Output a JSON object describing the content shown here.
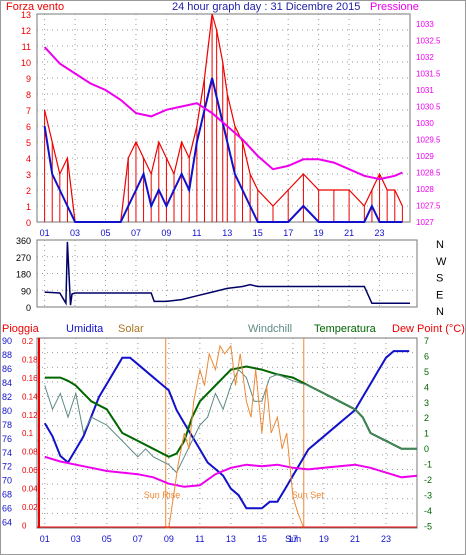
{
  "header": {
    "left_label": "Forza vento",
    "title": "24 hour graph day : 31 Dicembre 2015",
    "right_label": "Pressione"
  },
  "colors": {
    "red": "#ee0000",
    "blue": "#1111cc",
    "magenta": "#ee00ee",
    "navy": "#000066",
    "dark_green": "#006600",
    "orange": "#ee8833",
    "teal_gray": "#5d8a84",
    "gray_dots": "#888888"
  },
  "chart_data": [
    {
      "type": "line",
      "name": "wind-pressure",
      "x_ticks": [
        "01",
        "03",
        "05",
        "07",
        "09",
        "11",
        "13",
        "15",
        "17",
        "19",
        "21",
        "23"
      ],
      "ylim_left": [
        0,
        13
      ],
      "y_left_ticks": [
        "13",
        "12",
        "11",
        "10",
        "9",
        "8",
        "7",
        "6",
        "5",
        "4",
        "3",
        "2",
        "1",
        "0"
      ],
      "ylim_right": [
        1027,
        1033
      ],
      "y_right_ticks": [
        "1033",
        "1032.5",
        "1032",
        "1031.5",
        "1031",
        "1030.5",
        "1030",
        "1029.5",
        "1029",
        "1028.5",
        "1028",
        "1027.5",
        "1027"
      ],
      "series": [
        {
          "name": "Forza vento",
          "axis": "left",
          "color": "#ee0000",
          "x": [
            0,
            0.5,
            1,
            1.5,
            2,
            3,
            4,
            5,
            5.5,
            6,
            6.5,
            7,
            7.5,
            8,
            8.5,
            9,
            9.5,
            10,
            10.5,
            11,
            11.3,
            11.7,
            12,
            12.5,
            13,
            13.5,
            14,
            15,
            16,
            17,
            18,
            19,
            20,
            21,
            21.5,
            22,
            22.5,
            23,
            23.5
          ],
          "y": [
            7,
            5,
            3,
            4,
            0,
            0,
            0,
            0,
            4,
            5,
            4,
            3,
            5,
            4,
            3,
            5,
            4,
            6,
            9,
            13,
            12,
            10,
            8,
            6,
            5,
            3,
            2,
            1,
            2,
            3,
            2,
            2,
            2,
            1,
            2,
            3,
            2,
            2,
            1
          ]
        },
        {
          "name": "gust",
          "axis": "left",
          "color": "#1111cc",
          "x": [
            0,
            0.5,
            1,
            1.5,
            2,
            3,
            4,
            5,
            5.5,
            6,
            6.5,
            7,
            7.5,
            8,
            8.5,
            9,
            9.5,
            10,
            10.5,
            11,
            11.5,
            12,
            12.5,
            13,
            13.5,
            14,
            15,
            16,
            17,
            18,
            19,
            20,
            21,
            21.5,
            22,
            23,
            23.5
          ],
          "y": [
            6,
            3,
            2,
            1,
            0,
            0,
            0,
            0,
            1,
            2,
            3,
            1,
            2,
            1,
            2,
            3,
            2,
            5,
            7,
            9,
            7,
            5,
            3,
            2,
            1,
            0,
            0,
            0,
            1,
            0,
            0,
            0,
            0,
            1,
            0,
            0,
            0
          ]
        },
        {
          "name": "Pressione",
          "axis": "right",
          "color": "#ee00ee",
          "x": [
            0,
            1,
            2,
            3,
            4,
            5,
            6,
            7,
            8,
            9,
            10,
            11,
            12,
            13,
            14,
            15,
            16,
            17,
            18,
            19,
            20,
            21,
            22,
            23,
            23.5
          ],
          "y": [
            1032.3,
            1031.8,
            1031.5,
            1031.2,
            1031,
            1030.7,
            1030.3,
            1030.2,
            1030.4,
            1030.5,
            1030.6,
            1030.3,
            1029.9,
            1029.5,
            1029,
            1028.6,
            1028.7,
            1028.9,
            1028.9,
            1028.8,
            1028.6,
            1028.4,
            1028.3,
            1028.4,
            1028.5
          ]
        }
      ]
    },
    {
      "type": "line",
      "name": "wind-direction",
      "ylim": [
        0,
        360
      ],
      "y_left_ticks": [
        "360",
        "270",
        "180",
        "90",
        "0"
      ],
      "direction_labels": [
        "N",
        "W",
        "S",
        "E",
        "N"
      ],
      "series": [
        {
          "name": "direction",
          "color": "#000066",
          "x": [
            0,
            1,
            1.4,
            1.5,
            1.7,
            1.8,
            2,
            3,
            4,
            5,
            6,
            7,
            7.2,
            8,
            9,
            10,
            11,
            12,
            13,
            13.5,
            14,
            15,
            16,
            17,
            18,
            19,
            20,
            21,
            21.5,
            22,
            23,
            24
          ],
          "y": [
            80,
            75,
            20,
            350,
            10,
            70,
            75,
            75,
            75,
            75,
            75,
            75,
            30,
            30,
            40,
            60,
            80,
            100,
            110,
            120,
            110,
            110,
            110,
            110,
            110,
            110,
            110,
            110,
            20,
            20,
            20,
            20
          ]
        }
      ]
    },
    {
      "type": "line",
      "name": "weather-multi",
      "legend": [
        "Pioggia",
        "Umidita",
        "Solar",
        "Windchill",
        "Temperatura",
        "Dew Point (°C)"
      ],
      "x_ticks": [
        "01",
        "03",
        "05",
        "07",
        "09",
        "11",
        "13",
        "15",
        "17",
        "19",
        "21",
        "23"
      ],
      "y_humidity_ticks": [
        "90",
        "88",
        "86",
        "84",
        "82",
        "80",
        "78",
        "76",
        "74",
        "72",
        "70",
        "68",
        "66",
        "64"
      ],
      "y_rain_ticks": [
        "0.2",
        "0.18",
        "0.16",
        "0.14",
        "0.12",
        "0.1",
        "0.08",
        "0.06",
        "0.04",
        "0.02",
        "0"
      ],
      "y_temp_ticks": [
        "7",
        "6",
        "5",
        "4",
        "3",
        "2",
        "1",
        "0",
        "-1",
        "-2",
        "-3",
        "-4",
        "-5"
      ],
      "ylim_humidity": [
        62,
        91
      ],
      "ylim_temp": [
        -5,
        7
      ],
      "annotations": [
        {
          "text": "Sun Rise",
          "x": 7.8
        },
        {
          "text": "Sun Set",
          "x": 16.7
        },
        {
          "text": "Sun",
          "x": 15.5
        }
      ],
      "series": [
        {
          "name": "Umidita",
          "color": "#1111cc",
          "axis": "humidity",
          "x": [
            0,
            0.5,
            1,
            1.5,
            2,
            2.5,
            3,
            3.5,
            4,
            4.5,
            5,
            5.5,
            6,
            6.5,
            7,
            7.5,
            8,
            8.5,
            9,
            9.5,
            10,
            10.5,
            11,
            11.5,
            12,
            12.5,
            13,
            13.5,
            14,
            14.5,
            15,
            15.5,
            16,
            16.5,
            17,
            17.5,
            18,
            18.5,
            19,
            19.5,
            20,
            20.5,
            21,
            21.5,
            22,
            22.5,
            23,
            23.5
          ],
          "y": [
            78,
            76,
            73,
            72,
            74,
            76,
            79,
            82,
            84,
            86,
            88,
            88,
            87,
            86,
            85,
            84,
            83,
            80,
            78,
            76,
            74,
            72,
            71,
            70,
            68,
            67,
            65,
            65,
            65,
            66,
            66,
            68,
            70,
            72,
            74,
            75,
            76,
            77,
            78,
            79,
            80,
            82,
            84,
            86,
            88,
            89,
            89,
            89
          ]
        },
        {
          "name": "Temperatura",
          "color": "#006600",
          "axis": "temp",
          "x": [
            0,
            1,
            1.5,
            2,
            2.5,
            3,
            4,
            5,
            6,
            7,
            8,
            8.5,
            9,
            9.5,
            10,
            11,
            12,
            13,
            14,
            15,
            16,
            17,
            18,
            19,
            20,
            20.5,
            21,
            22,
            23,
            24
          ],
          "y": [
            4.5,
            4.5,
            4.3,
            4,
            3.5,
            3,
            2.5,
            1,
            0.5,
            0,
            -0.5,
            -0.3,
            0.5,
            2,
            3,
            4,
            5,
            5.2,
            5,
            4.7,
            4.5,
            4,
            3.5,
            3,
            2.5,
            2,
            1,
            0.5,
            0,
            0
          ]
        },
        {
          "name": "Dew Point (°C)",
          "color": "#ee00ee",
          "axis": "temp",
          "x": [
            0,
            1,
            2,
            3,
            4,
            5,
            6,
            7,
            8,
            9,
            10,
            11,
            12,
            13,
            14,
            15,
            16,
            17,
            18,
            19,
            20,
            21,
            22,
            23,
            24
          ],
          "y": [
            -0.5,
            -0.8,
            -1,
            -1.2,
            -1.4,
            -1.5,
            -1.6,
            -1.8,
            -2.2,
            -2.4,
            -2.3,
            -1.6,
            -1.2,
            -1,
            -1.1,
            -1,
            -1.2,
            -1.3,
            -1.2,
            -1.1,
            -1,
            -1.2,
            -1.5,
            -1.8,
            -1.7
          ]
        },
        {
          "name": "Windchill",
          "color": "#5d8a84",
          "axis": "temp",
          "x": [
            0,
            0.5,
            1,
            1.5,
            2,
            2.5,
            3,
            4,
            5,
            6,
            6.5,
            7,
            8,
            8.5,
            9,
            9.5,
            10,
            10.5,
            11,
            11.5,
            12,
            12.5,
            13,
            13.5,
            14,
            14.5,
            15,
            16,
            17,
            18,
            19,
            20,
            20.5,
            21,
            22,
            23,
            24
          ],
          "y": [
            4,
            2.5,
            3.5,
            2,
            3.5,
            1,
            2,
            1.5,
            0.5,
            -0.5,
            0,
            -0.5,
            -1,
            -1.5,
            -0.5,
            0.5,
            1.5,
            2,
            3.5,
            2.5,
            4,
            5,
            4.5,
            3,
            3,
            4.5,
            4.7,
            4.3,
            4,
            3.5,
            3,
            2.5,
            2,
            1,
            0.5,
            0,
            0
          ]
        },
        {
          "name": "Solar",
          "color": "#ee8833",
          "axis": "temp",
          "x": [
            7.8,
            8,
            8.3,
            8.6,
            9,
            9.3,
            9.6,
            10,
            10.3,
            10.6,
            11,
            11.3,
            11.6,
            12,
            12.3,
            12.6,
            13,
            13.3,
            13.6,
            14,
            14.3,
            14.6,
            15,
            15.3,
            15.6,
            16,
            16.3,
            16.7
          ],
          "y": [
            -5,
            -5,
            -3,
            -1,
            1,
            0,
            3,
            5,
            4,
            6,
            5,
            6.5,
            6,
            6.5,
            4,
            6,
            3,
            2,
            5,
            1,
            4,
            1,
            2,
            0,
            1,
            -3,
            -4,
            -5
          ]
        },
        {
          "name": "Pioggia",
          "color": "#ee0000",
          "axis": "rain",
          "values_all_zero": true
        }
      ]
    }
  ]
}
